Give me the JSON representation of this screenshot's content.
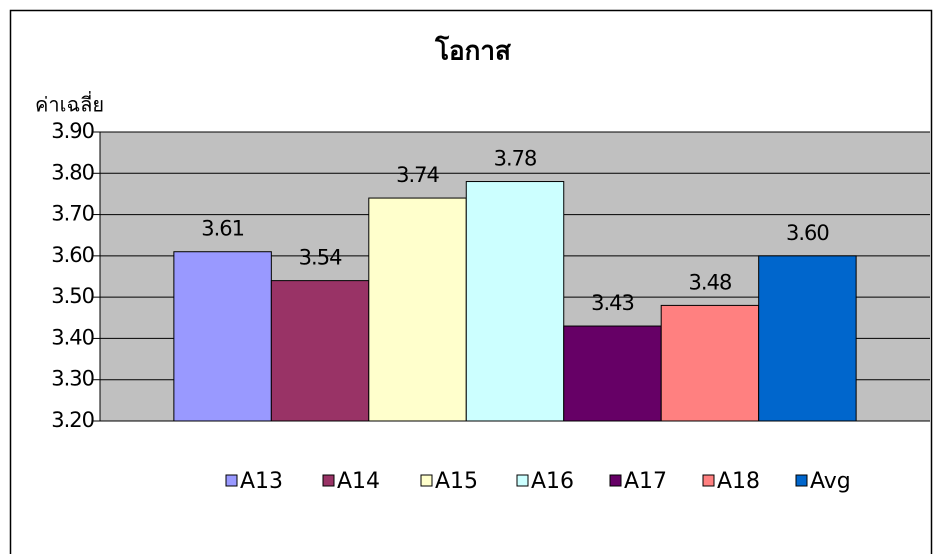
{
  "chart_data": {
    "type": "bar",
    "title": "โอกาส",
    "y_label": "ค่าเฉลี่ย",
    "categories": [
      null
    ],
    "series": [
      {
        "name": "A13",
        "color": "#9999ff",
        "values": [
          3.61
        ]
      },
      {
        "name": "A14",
        "color": "#993366",
        "values": [
          3.54
        ]
      },
      {
        "name": "A15",
        "color": "#ffffcc",
        "values": [
          3.74
        ]
      },
      {
        "name": "A16",
        "color": "#ccffff",
        "values": [
          3.78
        ]
      },
      {
        "name": "A17",
        "color": "#660066",
        "values": [
          3.43
        ]
      },
      {
        "name": "A18",
        "color": "#ff8080",
        "values": [
          3.48
        ]
      },
      {
        "name": "Avg",
        "color": "#0066cc",
        "values": [
          3.6
        ],
        "value_labels": [
          "3.60"
        ]
      }
    ],
    "ylim": [
      3.2,
      3.9
    ],
    "yticks": [
      {
        "value": 3.2,
        "label": "3.20"
      },
      {
        "value": 3.3,
        "label": "3.30"
      },
      {
        "value": 3.4,
        "label": "3.40"
      },
      {
        "value": 3.5,
        "label": "3.50"
      },
      {
        "value": 3.6,
        "label": "3.60"
      },
      {
        "value": 3.7,
        "label": "3.70"
      },
      {
        "value": 3.8,
        "label": "3.80"
      },
      {
        "value": 3.9,
        "label": "3.90"
      }
    ],
    "grid": true,
    "plot_background": "#c0c0c0",
    "legend": "bottom"
  }
}
